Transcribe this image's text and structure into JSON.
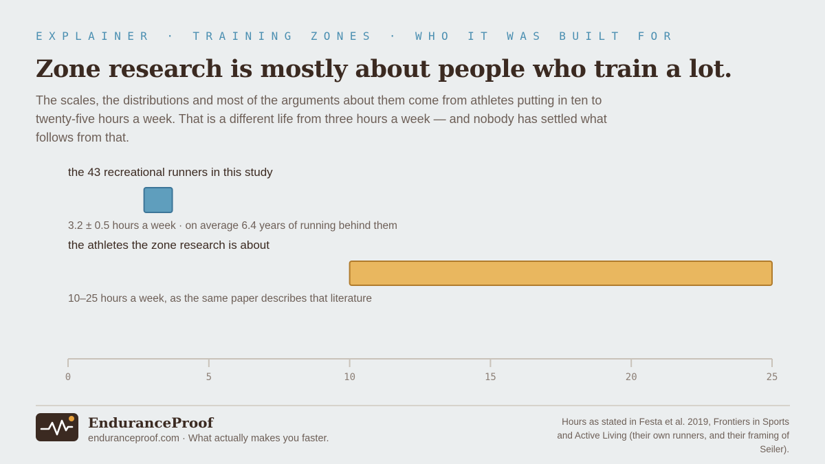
{
  "kicker": "EXPLAINER · TRAINING ZONES · WHO IT WAS BUILT FOR",
  "title": "Zone research is mostly about people who train a lot.",
  "subtitle": "The scales, the distributions and most of the arguments about them come from athletes putting in ten to twenty-five hours a week. That is a different life from three hours a week — and nobody has settled what follows from that.",
  "chart_data": {
    "type": "bar",
    "orientation": "horizontal-range",
    "title": "",
    "xlabel": "",
    "ylabel": "",
    "xlim": [
      0,
      25
    ],
    "x_ticks": [
      0,
      5,
      10,
      15,
      20,
      25
    ],
    "grid": false,
    "legend": "none",
    "series": [
      {
        "label": "the 43 recreational runners in this study",
        "start": 2.7,
        "end": 3.7,
        "note": "3.2 ± 0.5 hours a week · on average 6.4 years of running behind them",
        "color": "#5f9ebd",
        "stroke": "#3c7598"
      },
      {
        "label": "the athletes the zone research is about",
        "start": 10,
        "end": 25,
        "note": "10–25 hours a week, as the same paper describes that literature",
        "color": "#e9b75f",
        "stroke": "#b07b2c"
      }
    ]
  },
  "footer": {
    "brand_name": "EnduranceProof",
    "brand_tagline": "enduranceproof.com · What actually makes you faster.",
    "source": "Hours as stated in Festa et al. 2019, Frontiers in Sports and Active Living (their own runners, and their framing of Seiler)."
  },
  "colors": {
    "background": "#ebeeef",
    "accent": "#4b8fb1",
    "text": "#3b2a21",
    "logo_dot": "#e9a23b"
  },
  "icons": {
    "logo": "pulse-line-icon"
  }
}
